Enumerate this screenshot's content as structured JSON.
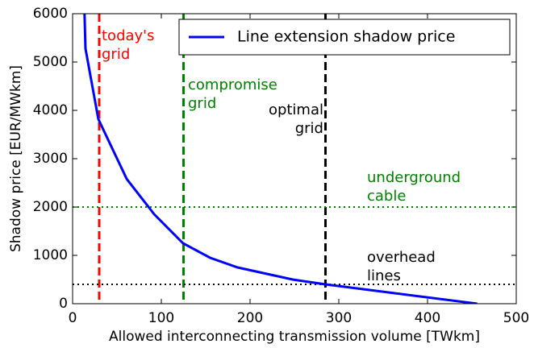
{
  "chart_data": {
    "type": "line",
    "xlabel": "Allowed interconnecting transmission volume [TWkm]",
    "ylabel": "Shadow price [EUR/MWkm]",
    "xlim": [
      0,
      500
    ],
    "ylim": [
      0,
      6000
    ],
    "xticks": [
      0,
      100,
      200,
      300,
      400,
      500
    ],
    "yticks": [
      0,
      1000,
      2000,
      3000,
      4000,
      5000,
      6000
    ],
    "x": [
      12,
      14.5,
      29,
      61,
      92,
      124.5,
      155,
      186,
      248,
      285,
      456
    ],
    "series": [
      {
        "name": "Line extension shadow price",
        "color": "#0000ff",
        "values": [
          7000,
          5280,
          3820,
          2580,
          1850,
          1250,
          950,
          750,
          500,
          400,
          0
        ]
      }
    ],
    "legend": "upper right",
    "vlines": [
      {
        "x": 30,
        "color": "#ff0000"
      },
      {
        "x": 125,
        "color": "#008000"
      },
      {
        "x": 285,
        "color": "#000000"
      }
    ],
    "hlines": [
      {
        "y": 2000,
        "color": "#008000"
      },
      {
        "y": 400,
        "color": "#000000"
      }
    ],
    "annotations": [
      {
        "lines": [
          "today's",
          "grid"
        ],
        "color": "#ff0000"
      },
      {
        "lines": [
          "compromise",
          "grid"
        ],
        "color": "#008000"
      },
      {
        "lines": [
          "optimal",
          "grid"
        ],
        "color": "#000000"
      },
      {
        "lines": [
          "underground",
          "cable"
        ],
        "color": "#008000"
      },
      {
        "lines": [
          "overhead",
          "lines"
        ],
        "color": "#000000"
      }
    ]
  }
}
